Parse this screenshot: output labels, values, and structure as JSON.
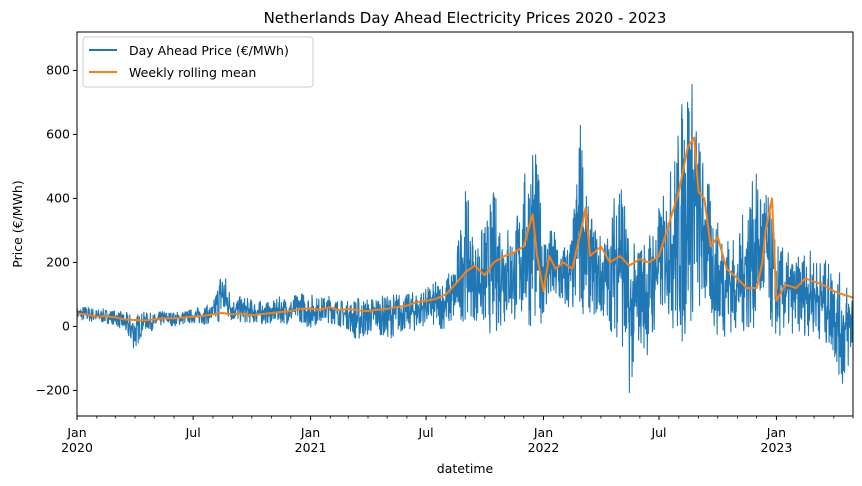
{
  "chart_data": {
    "type": "line",
    "title": "Netherlands Day Ahead Electricity Prices 2020 - 2023",
    "xlabel": "datetime",
    "ylabel": "Price (€/MWh)",
    "xlim": [
      "2020-01-01",
      "2023-05-01"
    ],
    "ylim": [
      -280,
      920
    ],
    "grid": false,
    "legend_position": "top-left",
    "y_ticks": [
      -200,
      0,
      200,
      400,
      600,
      800
    ],
    "y_tick_labels": [
      "−200",
      "0",
      "200",
      "400",
      "600",
      "800"
    ],
    "x_ticks": [
      {
        "date": "2020-01-01",
        "label": "Jan",
        "year": "2020"
      },
      {
        "date": "2020-07-01",
        "label": "Jul",
        "year": ""
      },
      {
        "date": "2021-01-01",
        "label": "Jan",
        "year": "2021"
      },
      {
        "date": "2021-07-01",
        "label": "Jul",
        "year": ""
      },
      {
        "date": "2022-01-01",
        "label": "Jan",
        "year": "2022"
      },
      {
        "date": "2022-07-01",
        "label": "Jul",
        "year": ""
      },
      {
        "date": "2023-01-01",
        "label": "Jan",
        "year": "2023"
      }
    ],
    "series": [
      {
        "name": "Day Ahead Price (€/MWh)",
        "color": "#1f77b4",
        "x": [
          "2020-01-01",
          "2020-01-15",
          "2020-02-01",
          "2020-02-15",
          "2020-03-01",
          "2020-03-15",
          "2020-04-01",
          "2020-04-15",
          "2020-05-01",
          "2020-05-15",
          "2020-06-01",
          "2020-06-15",
          "2020-07-01",
          "2020-07-15",
          "2020-08-01",
          "2020-08-15",
          "2020-09-01",
          "2020-09-15",
          "2020-10-01",
          "2020-10-15",
          "2020-11-01",
          "2020-11-15",
          "2020-12-01",
          "2020-12-15",
          "2021-01-01",
          "2021-01-15",
          "2021-02-01",
          "2021-02-15",
          "2021-03-01",
          "2021-03-15",
          "2021-04-01",
          "2021-04-15",
          "2021-05-01",
          "2021-05-15",
          "2021-06-01",
          "2021-06-15",
          "2021-07-01",
          "2021-07-15",
          "2021-08-01",
          "2021-08-15",
          "2021-09-01",
          "2021-09-15",
          "2021-10-01",
          "2021-10-15",
          "2021-11-01",
          "2021-11-15",
          "2021-12-01",
          "2021-12-15",
          "2021-12-22",
          "2022-01-01",
          "2022-01-15",
          "2022-02-01",
          "2022-02-15",
          "2022-03-01",
          "2022-03-08",
          "2022-03-15",
          "2022-04-01",
          "2022-04-15",
          "2022-05-01",
          "2022-05-15",
          "2022-06-01",
          "2022-06-15",
          "2022-07-01",
          "2022-07-15",
          "2022-08-01",
          "2022-08-15",
          "2022-08-25",
          "2022-09-01",
          "2022-09-15",
          "2022-10-01",
          "2022-10-15",
          "2022-11-01",
          "2022-11-15",
          "2022-12-01",
          "2022-12-15",
          "2023-01-01",
          "2023-01-15",
          "2023-02-01",
          "2023-02-15",
          "2023-03-01",
          "2023-03-15",
          "2023-04-01",
          "2023-04-15",
          "2023-05-01"
        ],
        "high": [
          60,
          65,
          55,
          55,
          50,
          45,
          40,
          45,
          40,
          50,
          45,
          50,
          55,
          65,
          70,
          200,
          90,
          95,
          85,
          80,
          75,
          95,
          90,
          110,
          105,
          90,
          100,
          85,
          80,
          95,
          90,
          100,
          95,
          110,
          100,
          115,
          120,
          140,
          160,
          200,
          445,
          260,
          330,
          430,
          350,
          300,
          470,
          620,
          520,
          320,
          310,
          260,
          300,
          700,
          420,
          350,
          290,
          300,
          600,
          260,
          270,
          310,
          380,
          450,
          650,
          870,
          750,
          620,
          470,
          330,
          310,
          260,
          420,
          480,
          460,
          270,
          240,
          210,
          250,
          230,
          210,
          200,
          150,
          140
        ],
        "low": [
          20,
          15,
          10,
          10,
          5,
          -20,
          -80,
          -10,
          -15,
          5,
          0,
          5,
          10,
          5,
          10,
          10,
          15,
          10,
          10,
          5,
          10,
          10,
          5,
          15,
          -10,
          15,
          10,
          0,
          -10,
          -50,
          -30,
          -20,
          -40,
          -30,
          -10,
          -20,
          10,
          -10,
          -10,
          0,
          20,
          20,
          -20,
          -30,
          0,
          10,
          0,
          -10,
          -20,
          30,
          50,
          40,
          30,
          20,
          60,
          40,
          10,
          -10,
          -50,
          -220,
          -60,
          -100,
          20,
          40,
          -90,
          -60,
          50,
          30,
          20,
          -40,
          -30,
          -20,
          -30,
          0,
          30,
          -50,
          -30,
          -20,
          -30,
          -30,
          -50,
          -100,
          -200,
          -100
        ]
      },
      {
        "name": "Weekly rolling mean",
        "color": "#ff7f0e",
        "x": [
          "2020-01-01",
          "2020-01-15",
          "2020-02-01",
          "2020-02-15",
          "2020-03-01",
          "2020-03-15",
          "2020-04-01",
          "2020-04-15",
          "2020-05-01",
          "2020-05-15",
          "2020-06-01",
          "2020-06-15",
          "2020-07-01",
          "2020-07-15",
          "2020-08-01",
          "2020-08-15",
          "2020-09-01",
          "2020-09-15",
          "2020-10-01",
          "2020-10-15",
          "2020-11-01",
          "2020-11-15",
          "2020-12-01",
          "2020-12-15",
          "2021-01-01",
          "2021-01-15",
          "2021-02-01",
          "2021-02-15",
          "2021-03-01",
          "2021-03-15",
          "2021-04-01",
          "2021-04-15",
          "2021-05-01",
          "2021-05-15",
          "2021-06-01",
          "2021-06-15",
          "2021-07-01",
          "2021-07-15",
          "2021-08-01",
          "2021-08-15",
          "2021-09-01",
          "2021-09-15",
          "2021-10-01",
          "2021-10-15",
          "2021-11-01",
          "2021-11-15",
          "2021-12-01",
          "2021-12-15",
          "2021-12-22",
          "2022-01-01",
          "2022-01-10",
          "2022-01-20",
          "2022-02-01",
          "2022-02-15",
          "2022-03-01",
          "2022-03-08",
          "2022-03-15",
          "2022-04-01",
          "2022-04-15",
          "2022-05-01",
          "2022-05-15",
          "2022-06-01",
          "2022-06-15",
          "2022-07-01",
          "2022-07-15",
          "2022-08-01",
          "2022-08-15",
          "2022-08-25",
          "2022-09-01",
          "2022-09-10",
          "2022-09-20",
          "2022-10-01",
          "2022-10-15",
          "2022-11-01",
          "2022-11-15",
          "2022-12-01",
          "2022-12-10",
          "2022-12-15",
          "2022-12-25",
          "2023-01-01",
          "2023-01-15",
          "2023-02-01",
          "2023-02-15",
          "2023-03-01",
          "2023-03-15",
          "2023-04-01",
          "2023-04-15",
          "2023-05-01"
        ],
        "values": [
          40,
          38,
          30,
          32,
          28,
          22,
          20,
          18,
          22,
          25,
          25,
          28,
          30,
          32,
          38,
          42,
          38,
          40,
          35,
          38,
          42,
          45,
          48,
          55,
          55,
          52,
          60,
          50,
          55,
          50,
          48,
          52,
          55,
          60,
          65,
          75,
          80,
          85,
          100,
          130,
          170,
          190,
          160,
          200,
          220,
          230,
          250,
          350,
          220,
          110,
          220,
          180,
          200,
          180,
          300,
          370,
          220,
          250,
          200,
          220,
          190,
          210,
          200,
          220,
          310,
          420,
          560,
          590,
          420,
          400,
          250,
          280,
          180,
          150,
          120,
          120,
          200,
          300,
          400,
          80,
          130,
          120,
          150,
          140,
          130,
          110,
          100,
          90
        ]
      }
    ]
  }
}
